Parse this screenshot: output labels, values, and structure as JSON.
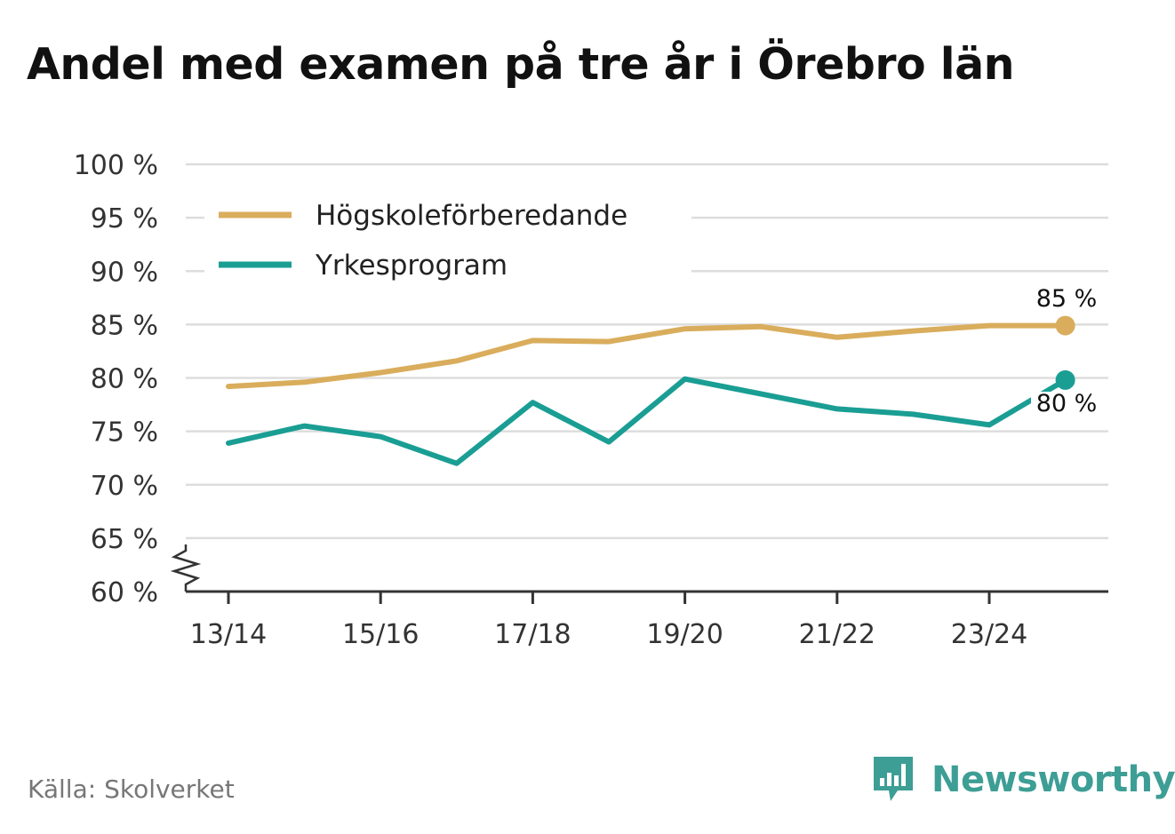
{
  "title": "Andel med examen på tre år i Örebro län",
  "source": "Källa: Skolverket",
  "brand": {
    "name": "Newsworthy",
    "icon": "newsworthy-logo-icon"
  },
  "colors": {
    "hogskole": "#d9ad5c",
    "yrkes": "#1a9e94",
    "grid": "#dddddd",
    "axis": "#333333"
  },
  "chart_data": {
    "type": "line",
    "title": "Andel med examen på tre år i Örebro län",
    "xlabel": "",
    "ylabel": "",
    "x": [
      "13/14",
      "14/15",
      "15/16",
      "16/17",
      "17/18",
      "18/19",
      "19/20",
      "20/21",
      "21/22",
      "22/23",
      "23/24",
      "24/25"
    ],
    "x_tick_labels": [
      "13/14",
      "15/16",
      "17/18",
      "19/20",
      "21/22",
      "23/24"
    ],
    "y_tick_labels": [
      "60 %",
      "65 %",
      "70 %",
      "75 %",
      "80 %",
      "85 %",
      "90 %",
      "95 %",
      "100 %"
    ],
    "y_ticks": [
      60,
      65,
      70,
      75,
      80,
      85,
      90,
      95,
      100
    ],
    "ylim": [
      60,
      100
    ],
    "axis_break": true,
    "grid": true,
    "legend": "top-left",
    "series": [
      {
        "name": "Högskoleförberedande",
        "color": "#d9ad5c",
        "values": [
          79.2,
          79.6,
          80.5,
          81.6,
          83.5,
          83.4,
          84.6,
          84.8,
          83.8,
          84.4,
          84.9,
          84.9
        ],
        "end_label": "85 %"
      },
      {
        "name": "Yrkesprogram",
        "color": "#1a9e94",
        "values": [
          73.9,
          75.5,
          74.5,
          72.0,
          77.7,
          74.0,
          79.9,
          78.5,
          77.1,
          76.6,
          75.6,
          79.8
        ],
        "end_label": "80 %"
      }
    ]
  }
}
